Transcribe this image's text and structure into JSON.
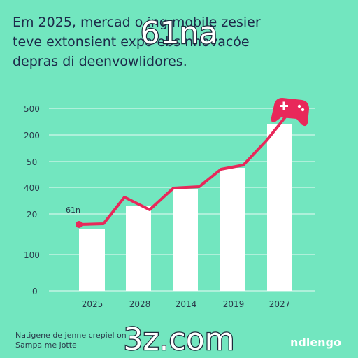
{
  "header": {
    "lines": [
      "Em 2025, mercad o ing mobile zesier",
      "teve extonsient expo ebs nnovacóe",
      "depras di deenvowlidores."
    ],
    "overlay": "61na"
  },
  "axis": {
    "labels": [
      "500",
      "200",
      "50",
      "400",
      "20",
      "100",
      "0"
    ],
    "categories": [
      "2025",
      "2028",
      "2014",
      "2019",
      "2027"
    ]
  },
  "annotation": "61n",
  "footer": {
    "lines": [
      "Natigene de jenne crepiel on",
      "Sampa me jotte"
    ],
    "overlay": "3z.com",
    "brand": "ndlengo"
  }
}
